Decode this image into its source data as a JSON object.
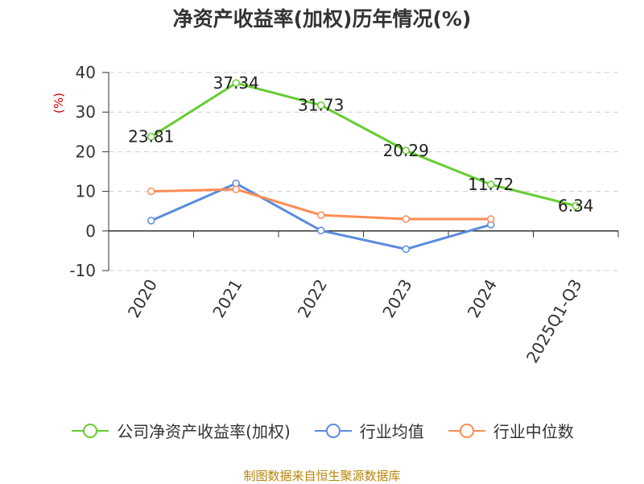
{
  "chart_data": {
    "type": "line",
    "title": "净资产收益率(加权)历年情况(%)",
    "ylabel": "(%)",
    "categories": [
      "2020",
      "2021",
      "2022",
      "2023",
      "2024",
      "2025Q1-Q3"
    ],
    "ylim": [
      -10,
      40
    ],
    "yticks": [
      -10,
      0,
      10,
      20,
      30,
      40
    ],
    "grid": true,
    "legend_position": "bottom",
    "series": [
      {
        "name": "公司净资产收益率(加权)",
        "color": "#66cc33",
        "values": [
          23.81,
          37.34,
          31.73,
          20.29,
          11.72,
          6.34
        ],
        "labels": [
          "23.81",
          "37.34",
          "31.73",
          "20.29",
          "11.72",
          "6.34"
        ]
      },
      {
        "name": "行业均值",
        "color": "#5b8be0",
        "values": [
          2.6,
          12.0,
          0.1,
          -4.6,
          1.6,
          null
        ],
        "labels": null
      },
      {
        "name": "行业中位数",
        "color": "#ff8c55",
        "values": [
          10.0,
          10.5,
          4.0,
          3.0,
          3.0,
          null
        ],
        "labels": null
      }
    ]
  },
  "source_text": "制图数据来自恒生聚源数据库"
}
